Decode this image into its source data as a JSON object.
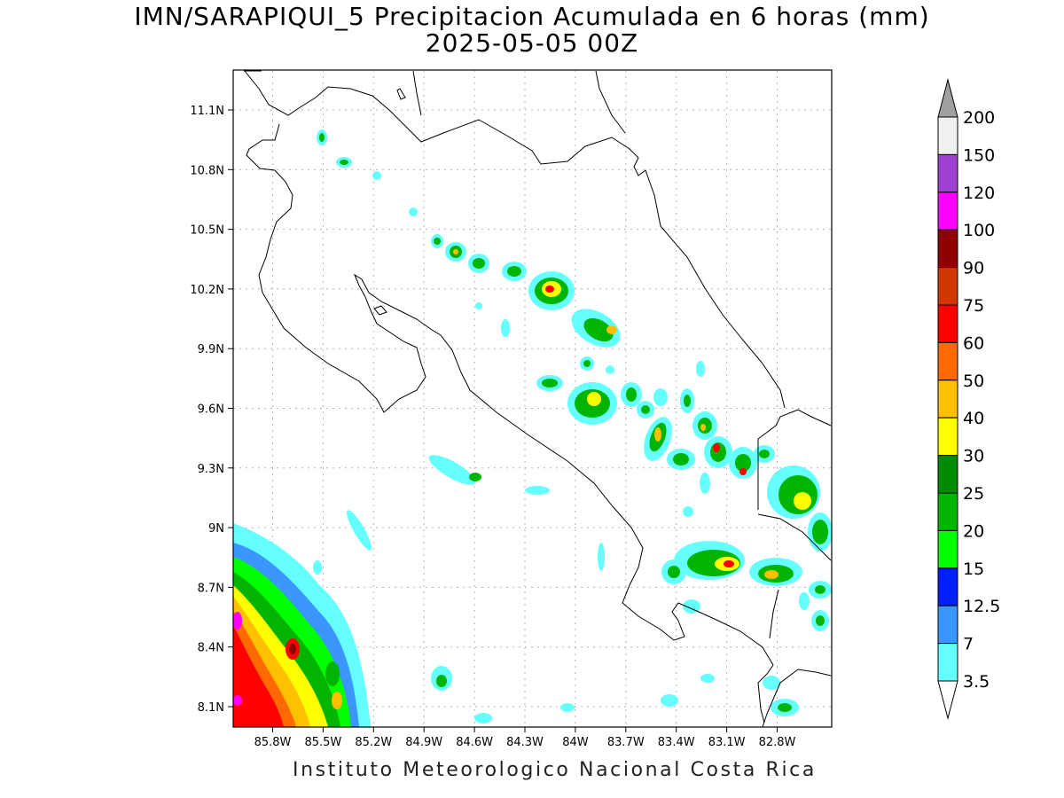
{
  "title_line1": "IMN/SARAPIQUI_5 Precipitacion Acumulada en 6 horas (mm)",
  "title_line2": "2025-05-05 00Z",
  "footer": "Instituto Meteorologico Nacional Costa Rica",
  "map": {
    "lon_ticks": [
      "85.8W",
      "85.5W",
      "85.2W",
      "84.9W",
      "84.6W",
      "84.3W",
      "84W",
      "83.7W",
      "83.4W",
      "83.1W",
      "82.8W"
    ],
    "lat_ticks": [
      "11.1N",
      "10.8N",
      "10.5N",
      "10.2N",
      "9.9N",
      "9.6N",
      "9.3N",
      "9N",
      "8.7N",
      "8.4N",
      "8.1N"
    ],
    "gridlines": true
  },
  "colorbar": {
    "levels": [
      "200",
      "150",
      "120",
      "100",
      "90",
      "75",
      "60",
      "50",
      "40",
      "30",
      "25",
      "20",
      "15",
      "12.5",
      "7",
      "3.5"
    ],
    "colors": [
      "#f0f0f0",
      "#a040d0",
      "#ff00ff",
      "#900000",
      "#d03800",
      "#ff0000",
      "#ff6a00",
      "#ffc000",
      "#ffff00",
      "#008c00",
      "#00b400",
      "#00ff00",
      "#0020ff",
      "#3c96ff",
      "#66ffff"
    ],
    "over_color": "#a0a0a0",
    "under_color": "#ffffff"
  }
}
